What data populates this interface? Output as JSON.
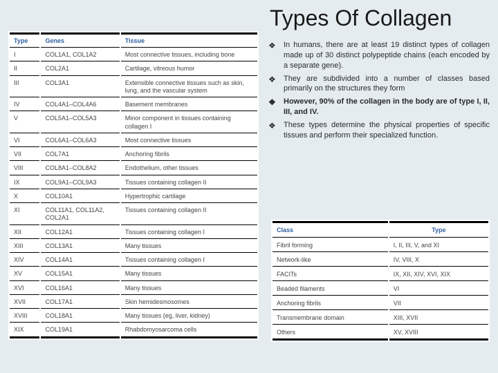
{
  "title": "Types Of Collagen",
  "leftTable": {
    "headers": [
      "Type",
      "Genes",
      "Tissue"
    ],
    "rows": [
      {
        "type": "I",
        "genes": "COL1A1, COL1A2",
        "tissue": "Most connective tissues, including bone"
      },
      {
        "type": "II",
        "genes": "COL2A1",
        "tissue": "Cartilage, vitreous humor"
      },
      {
        "type": "III",
        "genes": "COL3A1",
        "tissue": "Extensible connective tissues such as skin, lung, and the vascular system"
      },
      {
        "type": "IV",
        "genes": "COL4A1–COL4A6",
        "tissue": "Basement membranes"
      },
      {
        "type": "V",
        "genes": "COL5A1–COL5A3",
        "tissue": "Minor component in tissues containing collagen I"
      },
      {
        "type": "VI",
        "genes": "COL6A1–COL6A3",
        "tissue": "Most connective tissues"
      },
      {
        "type": "VII",
        "genes": "COL7A1",
        "tissue": "Anchoring fibrils"
      },
      {
        "type": "VIII",
        "genes": "COL8A1–COL8A2",
        "tissue": "Endothelium, other tissues"
      },
      {
        "type": "IX",
        "genes": "COL9A1–COL9A3",
        "tissue": "Tissues containing collagen II"
      },
      {
        "type": "X",
        "genes": "COL10A1",
        "tissue": "Hypertrophic cartilage"
      },
      {
        "type": "XI",
        "genes": "COL11A1, COL11A2, COL2A1",
        "tissue": "Tissues containing collagen II"
      },
      {
        "type": "XII",
        "genes": "COL12A1",
        "tissue": "Tissues containing collagen I"
      },
      {
        "type": "XIII",
        "genes": "COL13A1",
        "tissue": "Many tissues"
      },
      {
        "type": "XIV",
        "genes": "COL14A1",
        "tissue": "Tissues containing collagen I"
      },
      {
        "type": "XV",
        "genes": "COL15A1",
        "tissue": "Many tissues"
      },
      {
        "type": "XVI",
        "genes": "COL16A1",
        "tissue": "Many tissues"
      },
      {
        "type": "XVII",
        "genes": "COL17A1",
        "tissue": "Skin hemidesmosomes"
      },
      {
        "type": "XVIII",
        "genes": "COL18A1",
        "tissue": "Many tissues (eg, liver, kidney)"
      },
      {
        "type": "XIX",
        "genes": "COL19A1",
        "tissue": "Rhabdomyosarcoma cells"
      }
    ]
  },
  "bullets": [
    {
      "text": "In humans, there are at least 19 distinct types of collagen made up of 30 distinct polypeptide chains (each encoded by a separate gene).",
      "bold": false
    },
    {
      "text": "They are subdivided into a number of classes based primarily on the structures they form",
      "bold": false
    },
    {
      "text": "However, 90% of the collagen in the body are of type I, II, III, and IV.",
      "bold": true
    },
    {
      "text": "These types determine the physical properties of specific tissues and perform their specialized function.",
      "bold": false
    }
  ],
  "rightTable": {
    "headers": [
      "Class",
      "Type"
    ],
    "rows": [
      [
        "Fibril forming",
        "I, II, III, V, and XI"
      ],
      [
        "Network-like",
        "IV, VIII, X"
      ],
      [
        "FACITs",
        "IX, XII, XIV, XVI, XIX"
      ],
      [
        "Beaded filaments",
        "VI"
      ],
      [
        "Anchoring fibrils",
        "VII"
      ],
      [
        "Transmembrane domain",
        "XIII, XVII"
      ],
      [
        "Others",
        "XV, XVIII"
      ]
    ]
  }
}
